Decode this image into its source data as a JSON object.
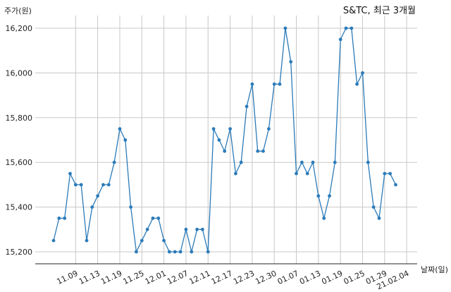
{
  "chart_data": {
    "type": "line",
    "title": "S&TC, 최근 3개월",
    "xlabel": "날짜(일)",
    "ylabel": "주가(원)",
    "ylim": [
      15143,
      16265
    ],
    "yticks": [
      15200,
      15400,
      15600,
      15800,
      16000,
      16200
    ],
    "ytick_labels": [
      "15,200",
      "15,400",
      "15,600",
      "15,800",
      "16,000",
      "16,200"
    ],
    "xtick_labels": [
      "11.09",
      "11.13",
      "11.19",
      "11.25",
      "12.01",
      "12.07",
      "12.11",
      "12.17",
      "12.23",
      "12.30",
      "01.07",
      "01.13",
      "01.19",
      "01.25",
      "01.29",
      "21.02.04"
    ],
    "xtick_index": [
      4,
      8,
      12,
      16,
      20,
      24,
      28,
      32,
      36,
      40,
      44,
      48,
      52,
      56,
      60,
      64
    ],
    "grid": true,
    "color": "#2b7bb9",
    "series": [
      {
        "values": [
          15250,
          15350,
          15350,
          15550,
          15500,
          15500,
          15250,
          15400,
          15450,
          15500,
          15500,
          15600,
          15750,
          15700,
          15400,
          15200,
          15250,
          15300,
          15350,
          15350,
          15250,
          15200,
          15200,
          15200,
          15300,
          15200,
          15300,
          15300,
          15200,
          15750,
          15700,
          15650,
          15750,
          15550,
          15600,
          15850,
          15950,
          15650,
          15650,
          15750,
          15950,
          15950,
          16200,
          16050,
          15550,
          15600,
          15550,
          15600,
          15450,
          15350,
          15450,
          15600,
          16150,
          16200,
          16200,
          15950,
          16000,
          15600,
          15400,
          15350,
          15550,
          15550,
          15500
        ]
      }
    ]
  }
}
